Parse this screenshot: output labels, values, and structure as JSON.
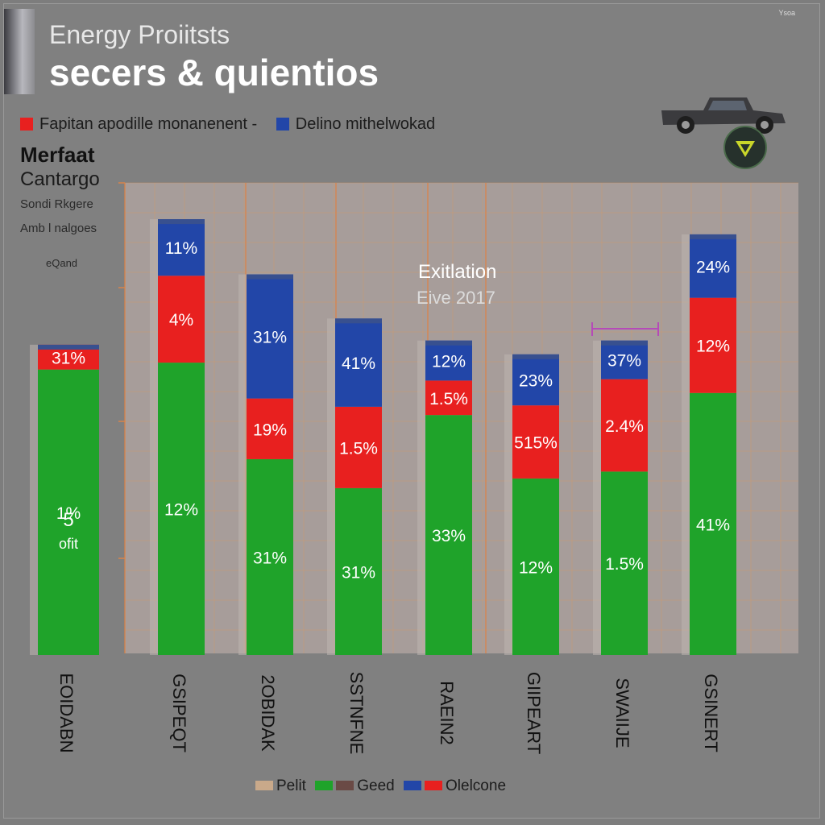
{
  "header": {
    "title": "Energy Proiitsts",
    "subtitle": "secers & quientios",
    "corner_text": "Ysoa"
  },
  "legend_top": [
    {
      "label": "Fapitan apodille monanenent -",
      "color": "#e8201f"
    },
    {
      "label": "Delino mithelwokad",
      "color": "#2246a8"
    }
  ],
  "side_labels": {
    "l1": "Merfaat",
    "l2": "Cantargo",
    "l3": "Sondi Rkgere",
    "l4": "Amb l nalgoes",
    "l5": "eQand"
  },
  "annotation": {
    "line1": "Exitlation",
    "line2": "Eive 2017"
  },
  "bottom_legend": [
    {
      "label": "Pelit",
      "color": "#c9a98a"
    },
    {
      "label": "Geed",
      "color": "#1fa32a"
    },
    {
      "label": "",
      "color": "#6a4a45"
    },
    {
      "label": "",
      "color": "#2246a8"
    },
    {
      "label": "Olelcone",
      "color": "#e8201f"
    }
  ],
  "colors": {
    "green": "#1fa32a",
    "red": "#e8201f",
    "blue": "#2246a8",
    "plot_bg": "#a79d9a",
    "grid": "#d49a66"
  },
  "chart_data": {
    "type": "bar",
    "stacked": true,
    "categories": [
      "EOIDABN",
      "GSIPEQT",
      "2OBIDAK",
      "SSTNFNE",
      "RAEIN2",
      "GIIPEART",
      "SWAIIJE",
      "GSINERT"
    ],
    "series": [
      {
        "name": "Geed",
        "color": "#1fa32a",
        "values": [
          20.7,
          21.2,
          14.2,
          12.1,
          17.4,
          12.8,
          13.3,
          19.0
        ]
      },
      {
        "name": "Olelcone",
        "color": "#e8201f",
        "values": [
          1.8,
          6.3,
          4.4,
          5.9,
          2.5,
          5.3,
          6.7,
          6.9
        ]
      },
      {
        "name": "",
        "color": "#2246a8",
        "values": [
          0,
          4.1,
          9.0,
          6.4,
          2.9,
          3.7,
          2.8,
          4.6
        ]
      }
    ],
    "segment_labels": [
      [
        "1%",
        "31%",
        ""
      ],
      [
        "12%",
        "4%",
        "11%"
      ],
      [
        "31%",
        "19%",
        "31%"
      ],
      [
        "31%",
        "1.5%",
        "41%"
      ],
      [
        "33%",
        "1.5%",
        "12%"
      ],
      [
        "12%",
        "515%",
        "23%"
      ],
      [
        "1.5%",
        "2.4%",
        "37%"
      ],
      [
        "41%",
        "12%",
        "24%"
      ]
    ],
    "first_bar_center_label": "5",
    "first_bar_center_sublabel": "ofit",
    "ylim": [
      0,
      34
    ],
    "grid": true
  }
}
